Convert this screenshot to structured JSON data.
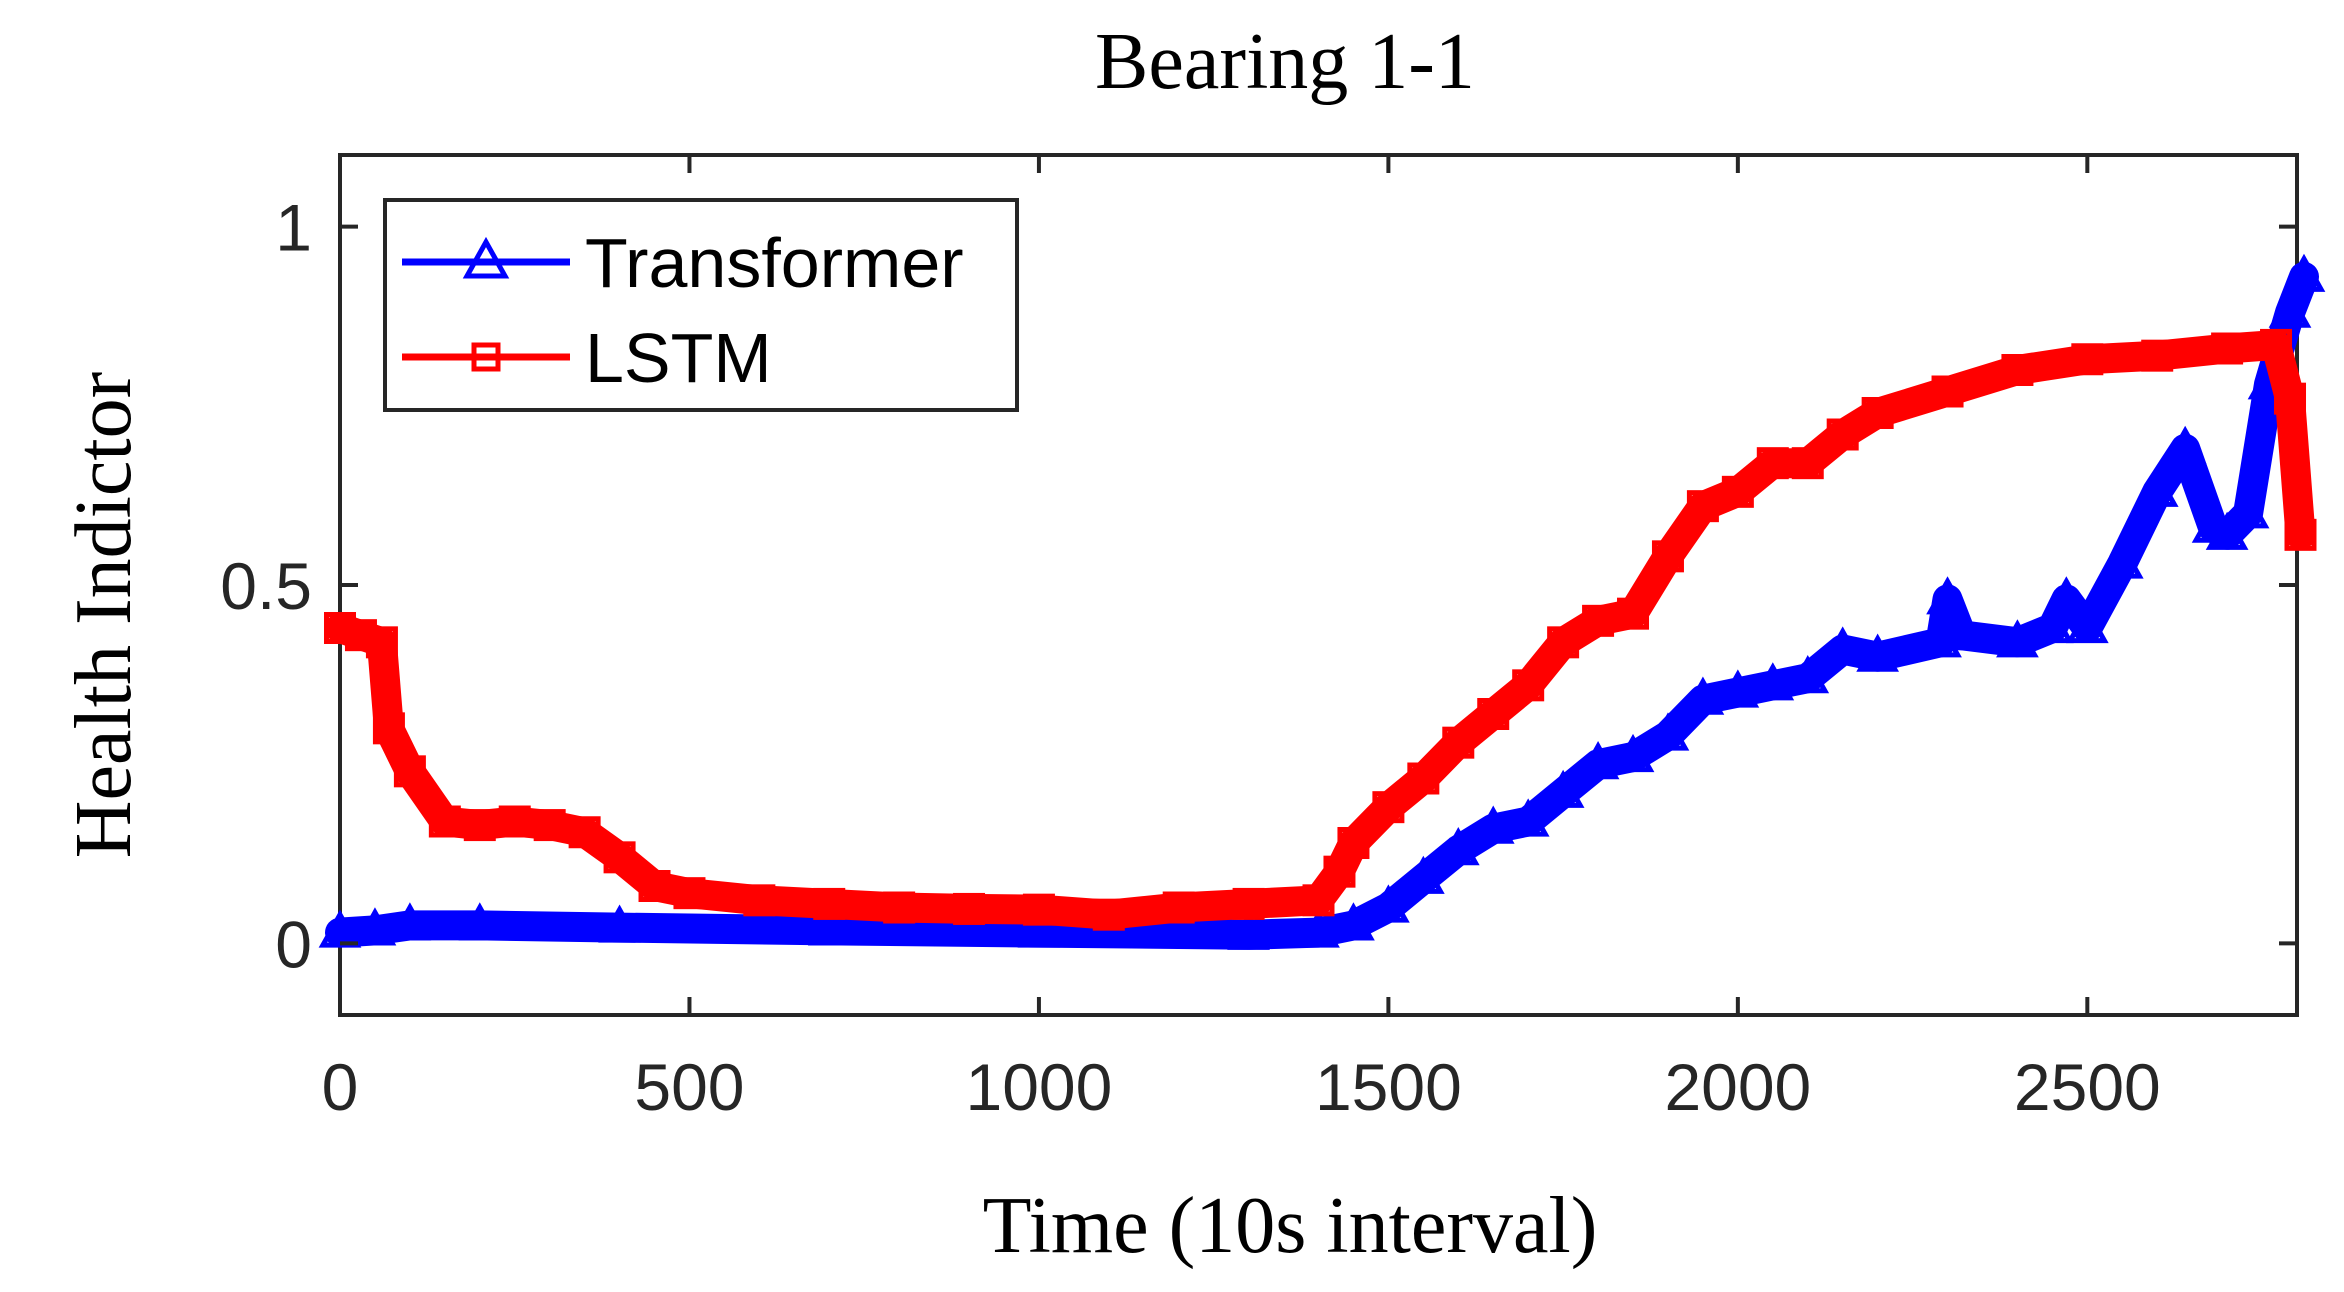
{
  "chart_data": {
    "type": "line",
    "title": "Bearing 1-1",
    "xlabel": "Time (10s interval)",
    "ylabel": "Health Indictor",
    "xlim": [
      0,
      2800
    ],
    "ylim": [
      -0.1,
      1.1
    ],
    "xticks": [
      0,
      500,
      1000,
      1500,
      2000,
      2500
    ],
    "xtick_labels": [
      "0",
      "500",
      "1000",
      "1500",
      "2000",
      "2500"
    ],
    "yticks": [
      0,
      0.5,
      1
    ],
    "ytick_labels": [
      "0",
      "0.5",
      "1"
    ],
    "grid": false,
    "legend_position": "top-left",
    "series": [
      {
        "name": "Transformer",
        "color": "#0000ff",
        "marker": "triangle",
        "points": [
          [
            0,
            0.015
          ],
          [
            50,
            0.018
          ],
          [
            100,
            0.025
          ],
          [
            200,
            0.025
          ],
          [
            400,
            0.022
          ],
          [
            700,
            0.018
          ],
          [
            1000,
            0.015
          ],
          [
            1300,
            0.012
          ],
          [
            1400,
            0.015
          ],
          [
            1450,
            0.025
          ],
          [
            1500,
            0.05
          ],
          [
            1550,
            0.09
          ],
          [
            1600,
            0.13
          ],
          [
            1650,
            0.16
          ],
          [
            1700,
            0.17
          ],
          [
            1750,
            0.21
          ],
          [
            1800,
            0.25
          ],
          [
            1850,
            0.26
          ],
          [
            1900,
            0.29
          ],
          [
            1950,
            0.34
          ],
          [
            2000,
            0.35
          ],
          [
            2050,
            0.36
          ],
          [
            2100,
            0.37
          ],
          [
            2150,
            0.41
          ],
          [
            2200,
            0.4
          ],
          [
            2290,
            0.42
          ],
          [
            2300,
            0.48
          ],
          [
            2320,
            0.43
          ],
          [
            2400,
            0.42
          ],
          [
            2450,
            0.44
          ],
          [
            2470,
            0.48
          ],
          [
            2500,
            0.44
          ],
          [
            2550,
            0.53
          ],
          [
            2600,
            0.63
          ],
          [
            2640,
            0.69
          ],
          [
            2680,
            0.58
          ],
          [
            2700,
            0.57
          ],
          [
            2730,
            0.6
          ],
          [
            2760,
            0.78
          ],
          [
            2790,
            0.88
          ],
          [
            2810,
            0.93
          ]
        ]
      },
      {
        "name": "LSTM",
        "color": "#ff0000",
        "marker": "square",
        "points": [
          [
            0,
            0.44
          ],
          [
            30,
            0.43
          ],
          [
            60,
            0.42
          ],
          [
            70,
            0.3
          ],
          [
            100,
            0.24
          ],
          [
            150,
            0.17
          ],
          [
            200,
            0.165
          ],
          [
            250,
            0.17
          ],
          [
            300,
            0.165
          ],
          [
            350,
            0.155
          ],
          [
            400,
            0.12
          ],
          [
            450,
            0.08
          ],
          [
            500,
            0.07
          ],
          [
            600,
            0.06
          ],
          [
            700,
            0.055
          ],
          [
            800,
            0.05
          ],
          [
            900,
            0.048
          ],
          [
            1000,
            0.047
          ],
          [
            1100,
            0.04
          ],
          [
            1200,
            0.05
          ],
          [
            1300,
            0.055
          ],
          [
            1400,
            0.06
          ],
          [
            1430,
            0.1
          ],
          [
            1450,
            0.14
          ],
          [
            1500,
            0.19
          ],
          [
            1550,
            0.23
          ],
          [
            1600,
            0.28
          ],
          [
            1650,
            0.32
          ],
          [
            1700,
            0.36
          ],
          [
            1750,
            0.42
          ],
          [
            1800,
            0.45
          ],
          [
            1850,
            0.46
          ],
          [
            1900,
            0.54
          ],
          [
            1950,
            0.61
          ],
          [
            2000,
            0.63
          ],
          [
            2050,
            0.67
          ],
          [
            2100,
            0.67
          ],
          [
            2150,
            0.71
          ],
          [
            2200,
            0.74
          ],
          [
            2300,
            0.77
          ],
          [
            2400,
            0.8
          ],
          [
            2500,
            0.815
          ],
          [
            2600,
            0.82
          ],
          [
            2700,
            0.83
          ],
          [
            2770,
            0.835
          ],
          [
            2790,
            0.76
          ],
          [
            2805,
            0.57
          ]
        ]
      }
    ]
  }
}
